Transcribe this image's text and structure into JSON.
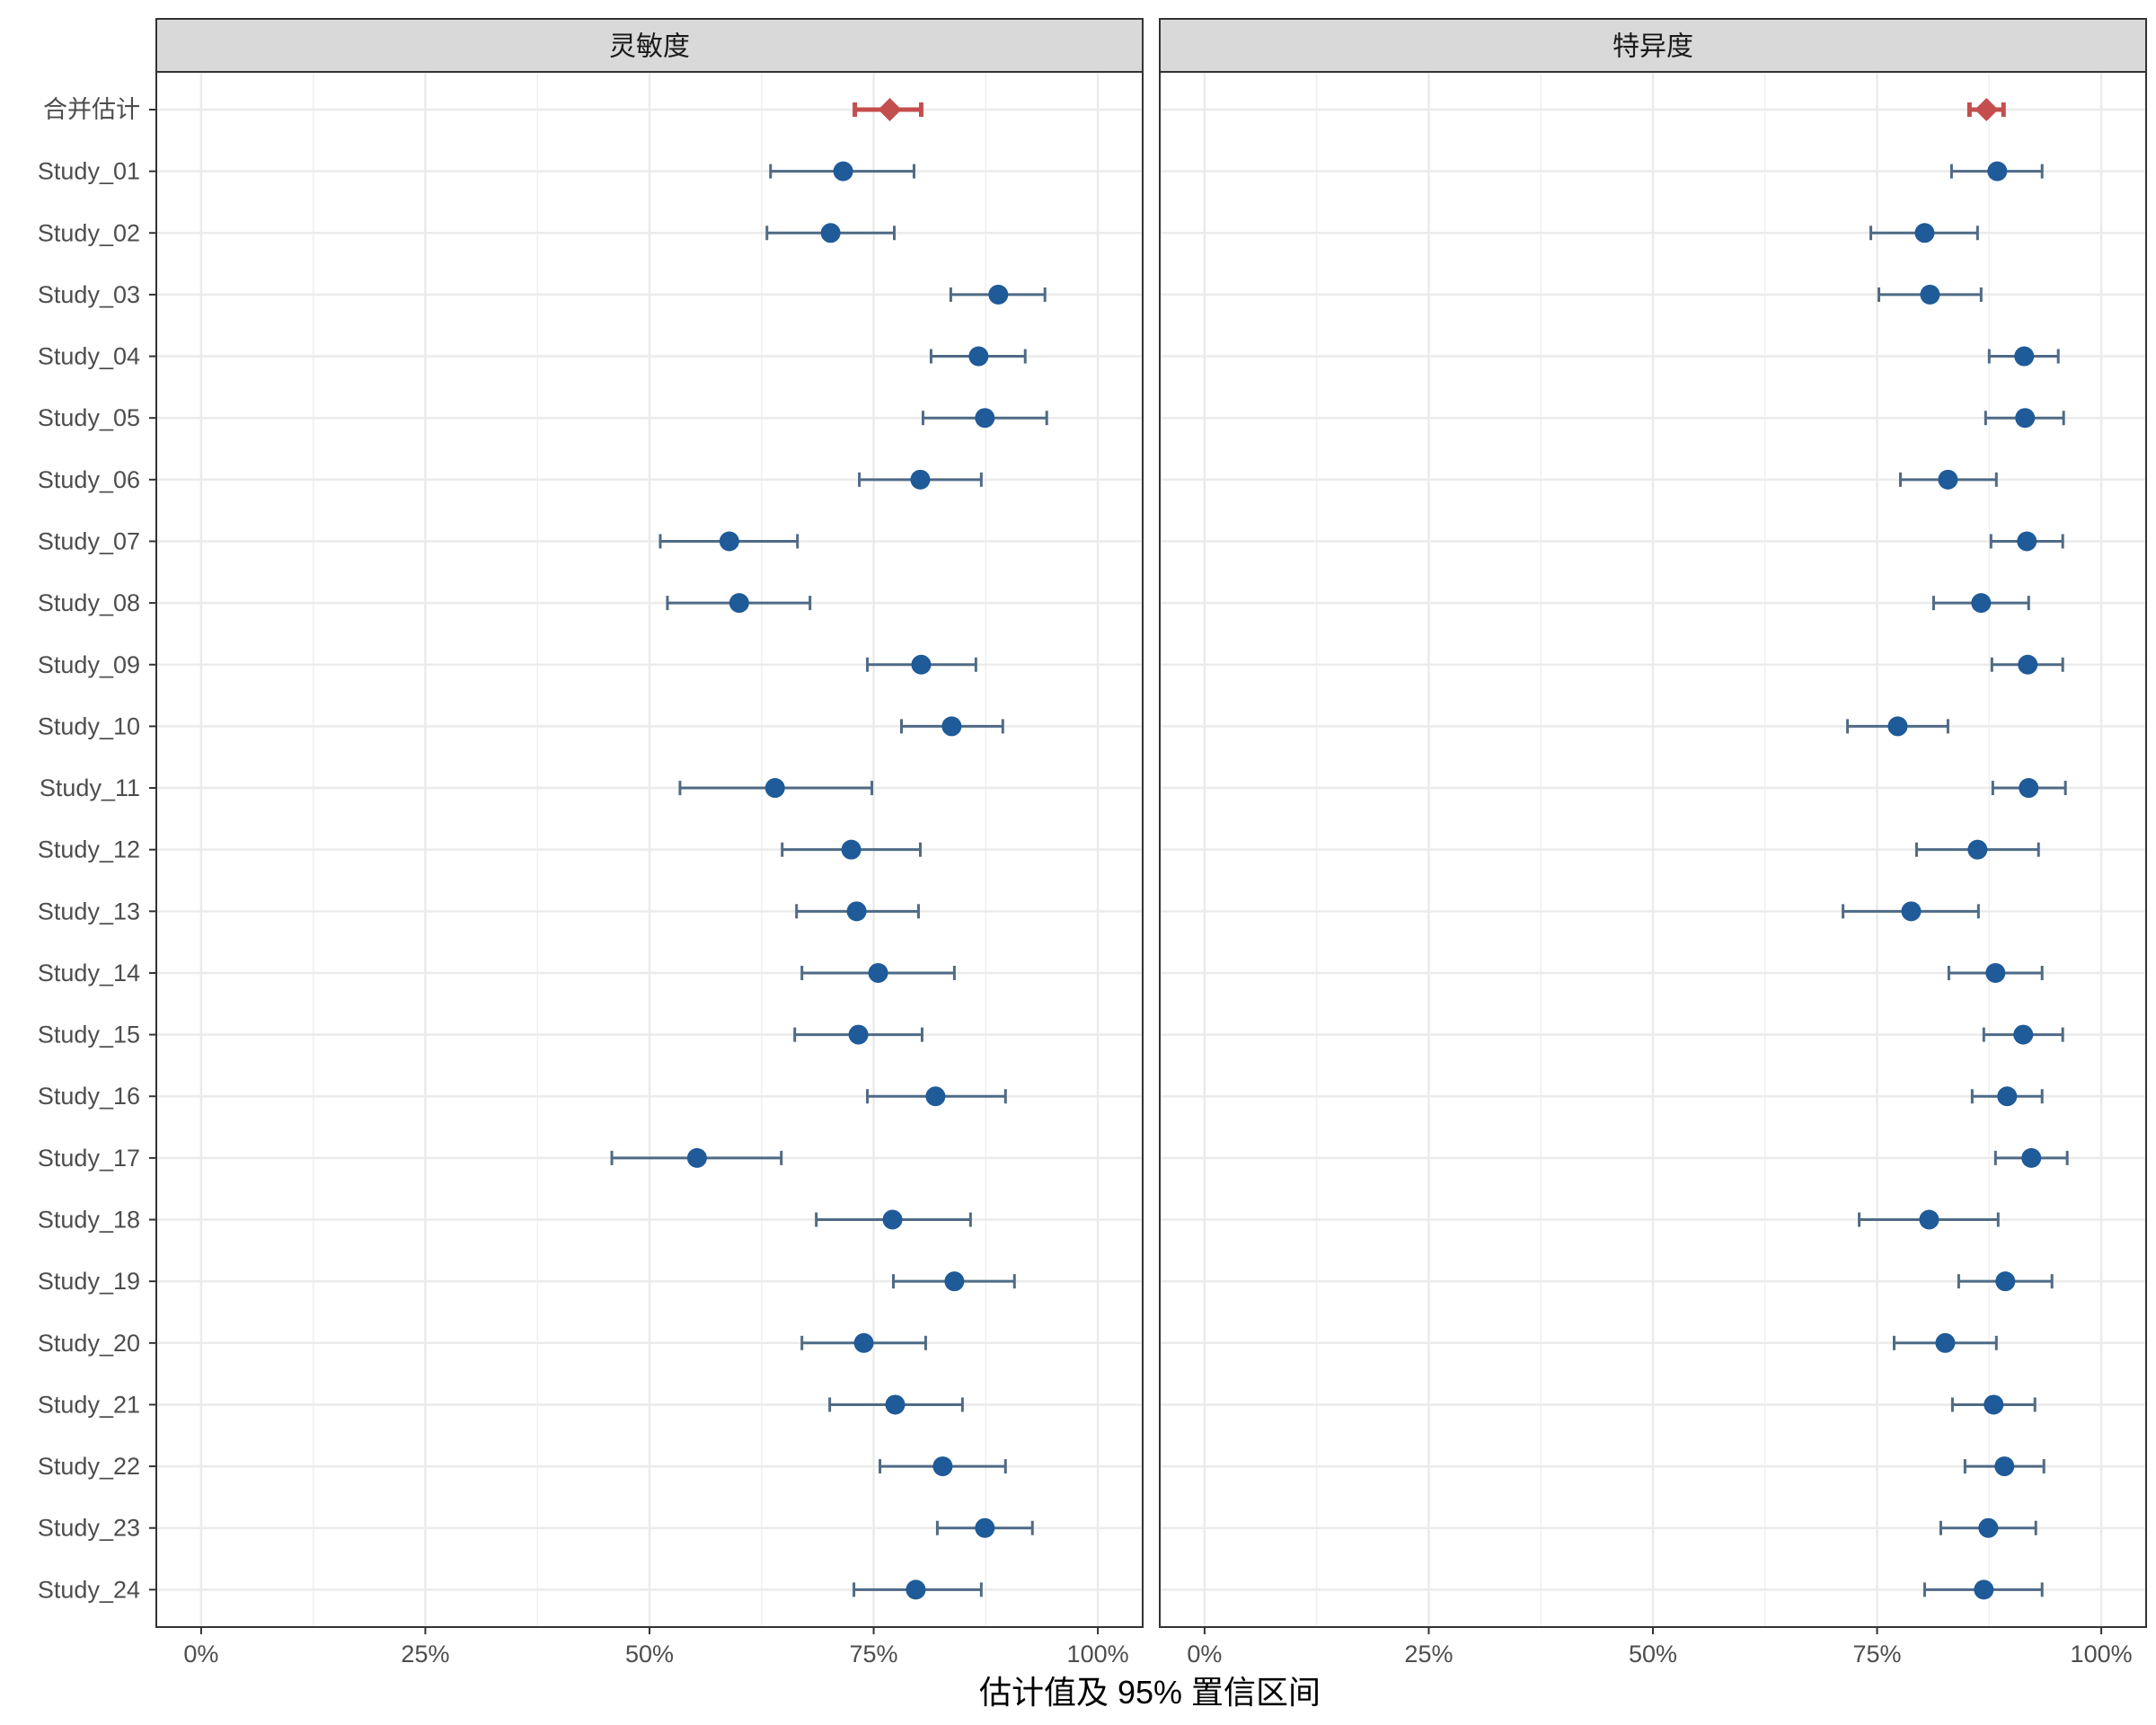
{
  "chart_data": {
    "type": "forest",
    "xlabel": "估计值及 95% 置信区间",
    "xlim": [
      -0.05,
      1.05
    ],
    "xticks": [
      0,
      0.25,
      0.5,
      0.75,
      1.0
    ],
    "xtick_labels": [
      "0%",
      "25%",
      "50%",
      "75%",
      "100%"
    ],
    "grid": true,
    "colors": {
      "study": "#1f5a99",
      "pooled": "#c44e4e",
      "errorbar": "#4f6a85",
      "strip": "#d9d9d9"
    },
    "rows": [
      "合并估计",
      "Study_01",
      "Study_02",
      "Study_03",
      "Study_04",
      "Study_05",
      "Study_06",
      "Study_07",
      "Study_08",
      "Study_09",
      "Study_10",
      "Study_11",
      "Study_12",
      "Study_13",
      "Study_14",
      "Study_15",
      "Study_16",
      "Study_17",
      "Study_18",
      "Study_19",
      "Study_20",
      "Study_21",
      "Study_22",
      "Study_23",
      "Study_24"
    ],
    "panels": [
      {
        "title": "灵敏度",
        "estimates": [
          {
            "label": "合并估计",
            "pooled": true,
            "est": 0.768,
            "lo": 0.729,
            "hi": 0.803
          },
          {
            "label": "Study_01",
            "est": 0.716,
            "lo": 0.635,
            "hi": 0.795
          },
          {
            "label": "Study_02",
            "est": 0.702,
            "lo": 0.631,
            "hi": 0.773
          },
          {
            "label": "Study_03",
            "est": 0.889,
            "lo": 0.836,
            "hi": 0.941
          },
          {
            "label": "Study_04",
            "est": 0.867,
            "lo": 0.814,
            "hi": 0.919
          },
          {
            "label": "Study_05",
            "est": 0.874,
            "lo": 0.805,
            "hi": 0.943
          },
          {
            "label": "Study_06",
            "est": 0.802,
            "lo": 0.734,
            "hi": 0.87
          },
          {
            "label": "Study_07",
            "est": 0.589,
            "lo": 0.512,
            "hi": 0.665
          },
          {
            "label": "Study_08",
            "est": 0.6,
            "lo": 0.52,
            "hi": 0.679
          },
          {
            "label": "Study_09",
            "est": 0.803,
            "lo": 0.743,
            "hi": 0.864
          },
          {
            "label": "Study_10",
            "est": 0.837,
            "lo": 0.781,
            "hi": 0.894
          },
          {
            "label": "Study_11",
            "est": 0.64,
            "lo": 0.534,
            "hi": 0.748
          },
          {
            "label": "Study_12",
            "est": 0.725,
            "lo": 0.648,
            "hi": 0.802
          },
          {
            "label": "Study_13",
            "est": 0.731,
            "lo": 0.664,
            "hi": 0.8
          },
          {
            "label": "Study_14",
            "est": 0.755,
            "lo": 0.67,
            "hi": 0.84
          },
          {
            "label": "Study_15",
            "est": 0.733,
            "lo": 0.662,
            "hi": 0.804
          },
          {
            "label": "Study_16",
            "est": 0.819,
            "lo": 0.743,
            "hi": 0.897
          },
          {
            "label": "Study_17",
            "est": 0.553,
            "lo": 0.458,
            "hi": 0.647
          },
          {
            "label": "Study_18",
            "est": 0.771,
            "lo": 0.686,
            "hi": 0.858
          },
          {
            "label": "Study_19",
            "est": 0.84,
            "lo": 0.772,
            "hi": 0.907
          },
          {
            "label": "Study_20",
            "est": 0.739,
            "lo": 0.67,
            "hi": 0.808
          },
          {
            "label": "Study_21",
            "est": 0.774,
            "lo": 0.701,
            "hi": 0.849
          },
          {
            "label": "Study_22",
            "est": 0.827,
            "lo": 0.757,
            "hi": 0.897
          },
          {
            "label": "Study_23",
            "est": 0.874,
            "lo": 0.821,
            "hi": 0.927
          },
          {
            "label": "Study_24",
            "est": 0.797,
            "lo": 0.728,
            "hi": 0.87
          }
        ]
      },
      {
        "title": "特异度",
        "estimates": [
          {
            "label": "合并估计",
            "pooled": true,
            "est": 0.872,
            "lo": 0.853,
            "hi": 0.891
          },
          {
            "label": "Study_01",
            "est": 0.884,
            "lo": 0.833,
            "hi": 0.934
          },
          {
            "label": "Study_02",
            "est": 0.803,
            "lo": 0.743,
            "hi": 0.862
          },
          {
            "label": "Study_03",
            "est": 0.809,
            "lo": 0.752,
            "hi": 0.866
          },
          {
            "label": "Study_04",
            "est": 0.914,
            "lo": 0.875,
            "hi": 0.952
          },
          {
            "label": "Study_05",
            "est": 0.915,
            "lo": 0.871,
            "hi": 0.958
          },
          {
            "label": "Study_06",
            "est": 0.829,
            "lo": 0.776,
            "hi": 0.883
          },
          {
            "label": "Study_07",
            "est": 0.917,
            "lo": 0.877,
            "hi": 0.957
          },
          {
            "label": "Study_08",
            "est": 0.866,
            "lo": 0.813,
            "hi": 0.919
          },
          {
            "label": "Study_09",
            "est": 0.918,
            "lo": 0.878,
            "hi": 0.957
          },
          {
            "label": "Study_10",
            "est": 0.773,
            "lo": 0.717,
            "hi": 0.829
          },
          {
            "label": "Study_11",
            "est": 0.919,
            "lo": 0.879,
            "hi": 0.96
          },
          {
            "label": "Study_12",
            "est": 0.862,
            "lo": 0.794,
            "hi": 0.93
          },
          {
            "label": "Study_13",
            "est": 0.788,
            "lo": 0.712,
            "hi": 0.863
          },
          {
            "label": "Study_14",
            "est": 0.882,
            "lo": 0.83,
            "hi": 0.934
          },
          {
            "label": "Study_15",
            "est": 0.913,
            "lo": 0.869,
            "hi": 0.957
          },
          {
            "label": "Study_16",
            "est": 0.895,
            "lo": 0.856,
            "hi": 0.934
          },
          {
            "label": "Study_17",
            "est": 0.922,
            "lo": 0.882,
            "hi": 0.962
          },
          {
            "label": "Study_18",
            "est": 0.808,
            "lo": 0.73,
            "hi": 0.885
          },
          {
            "label": "Study_19",
            "est": 0.893,
            "lo": 0.841,
            "hi": 0.945
          },
          {
            "label": "Study_20",
            "est": 0.826,
            "lo": 0.769,
            "hi": 0.883
          },
          {
            "label": "Study_21",
            "est": 0.88,
            "lo": 0.834,
            "hi": 0.926
          },
          {
            "label": "Study_22",
            "est": 0.892,
            "lo": 0.848,
            "hi": 0.936
          },
          {
            "label": "Study_23",
            "est": 0.874,
            "lo": 0.821,
            "hi": 0.927
          },
          {
            "label": "Study_24",
            "est": 0.869,
            "lo": 0.803,
            "hi": 0.934
          }
        ]
      }
    ]
  }
}
